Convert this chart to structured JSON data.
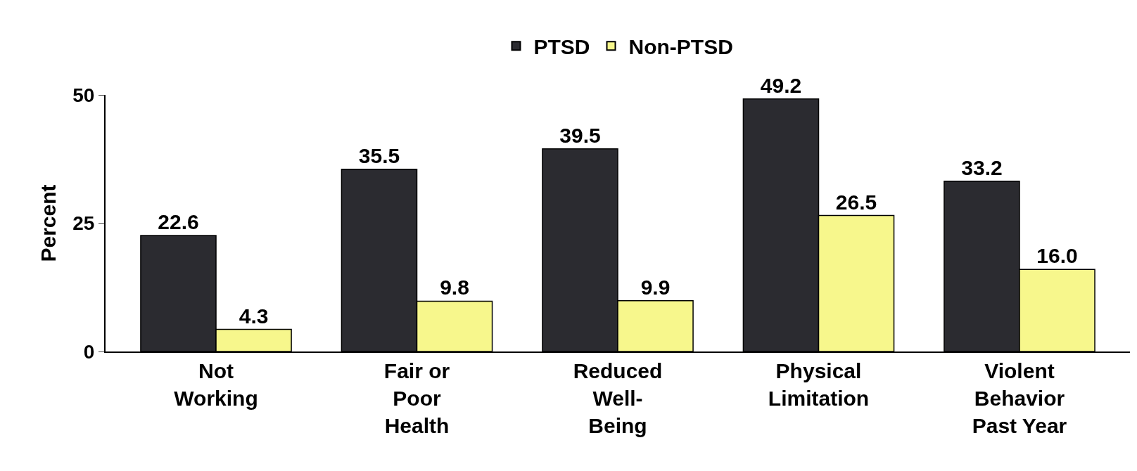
{
  "chart_data": {
    "type": "bar",
    "categories": [
      "Not\nWorking",
      "Fair or\nPoor\nHealth",
      "Reduced\nWell-\nBeing",
      "Physical\nLimitation",
      "Violent\nBehavior\nPast Year"
    ],
    "series": [
      {
        "name": "PTSD",
        "color": "#2b2b30",
        "values": [
          22.6,
          35.5,
          39.5,
          49.2,
          33.2
        ],
        "value_labels": [
          "22.6",
          "35.5",
          "39.5",
          "49.2",
          "33.2"
        ]
      },
      {
        "name": "Non-PTSD",
        "color": "#f7f78c",
        "values": [
          4.3,
          9.8,
          9.9,
          26.5,
          16.0
        ],
        "value_labels": [
          "4.3",
          "9.8",
          "9.9",
          "26.5",
          "16.0"
        ]
      }
    ],
    "ylabel": "Percent",
    "ylim": [
      0,
      50
    ],
    "yticks": [
      0,
      25,
      50
    ],
    "legend": "top"
  }
}
